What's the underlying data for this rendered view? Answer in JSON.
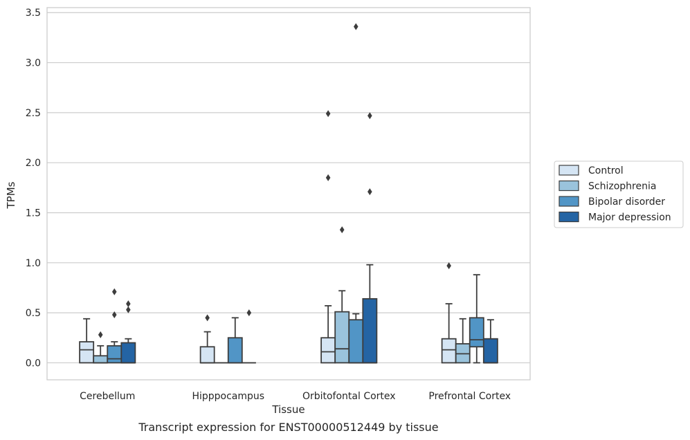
{
  "chart_data": {
    "type": "box",
    "xlabel": "Tissue",
    "ylabel": "TPMs",
    "caption": "Transcript expression for ENST00000512449 by tissue",
    "ylim": [
      -0.17,
      3.55
    ],
    "yticks": [
      "0.0",
      "0.5",
      "1.0",
      "1.5",
      "2.0",
      "2.5",
      "3.0",
      "3.5"
    ],
    "grid": true,
    "legend_position": "right",
    "categories": [
      "Cerebellum",
      "Hipppocampus",
      "Orbitofontal Cortex",
      "Prefrontal Cortex"
    ],
    "series": [
      {
        "name": "Control",
        "color": "#d5e5f4",
        "boxes": [
          {
            "q1": 0.0,
            "median": 0.13,
            "q3": 0.21,
            "whisker_low": 0.0,
            "whisker_high": 0.44,
            "outliers": []
          },
          {
            "q1": 0.0,
            "median": 0.0,
            "q3": 0.16,
            "whisker_low": 0.0,
            "whisker_high": 0.31,
            "outliers": [
              0.45
            ]
          },
          {
            "q1": 0.0,
            "median": 0.11,
            "q3": 0.25,
            "whisker_low": 0.0,
            "whisker_high": 0.57,
            "outliers": [
              1.85,
              2.49
            ]
          },
          {
            "q1": 0.0,
            "median": 0.13,
            "q3": 0.24,
            "whisker_low": 0.0,
            "whisker_high": 0.59,
            "outliers": [
              0.97
            ]
          }
        ]
      },
      {
        "name": "Schizophrenia",
        "color": "#9ac3dc",
        "boxes": [
          {
            "q1": 0.0,
            "median": 0.0,
            "q3": 0.07,
            "whisker_low": 0.0,
            "whisker_high": 0.17,
            "outliers": [
              0.28
            ]
          },
          {
            "q1": 0.0,
            "median": 0.0,
            "q3": 0.0,
            "whisker_low": 0.0,
            "whisker_high": 0.0,
            "outliers": []
          },
          {
            "q1": 0.0,
            "median": 0.14,
            "q3": 0.51,
            "whisker_low": 0.0,
            "whisker_high": 0.72,
            "outliers": [
              1.33
            ]
          },
          {
            "q1": 0.0,
            "median": 0.09,
            "q3": 0.19,
            "whisker_low": 0.0,
            "whisker_high": 0.44,
            "outliers": []
          }
        ]
      },
      {
        "name": "Bipolar disorder",
        "color": "#5195c6",
        "boxes": [
          {
            "q1": 0.0,
            "median": 0.04,
            "q3": 0.17,
            "whisker_low": 0.0,
            "whisker_high": 0.21,
            "outliers": [
              0.48,
              0.71
            ]
          },
          {
            "q1": 0.0,
            "median": 0.0,
            "q3": 0.25,
            "whisker_low": 0.0,
            "whisker_high": 0.45,
            "outliers": []
          },
          {
            "q1": 0.0,
            "median": 0.0,
            "q3": 0.43,
            "whisker_low": 0.0,
            "whisker_high": 0.49,
            "outliers": [
              3.36
            ]
          },
          {
            "q1": 0.16,
            "median": 0.23,
            "q3": 0.45,
            "whisker_low": 0.0,
            "whisker_high": 0.88,
            "outliers": []
          }
        ]
      },
      {
        "name": "Major depression",
        "color": "#2464a4",
        "boxes": [
          {
            "q1": 0.0,
            "median": 0.0,
            "q3": 0.2,
            "whisker_low": 0.0,
            "whisker_high": 0.24,
            "outliers": [
              0.53,
              0.59
            ]
          },
          {
            "q1": 0.0,
            "median": 0.0,
            "q3": 0.0,
            "whisker_low": 0.0,
            "whisker_high": 0.0,
            "outliers": [
              0.5
            ]
          },
          {
            "q1": 0.0,
            "median": 0.0,
            "q3": 0.64,
            "whisker_low": 0.0,
            "whisker_high": 0.98,
            "outliers": [
              1.71,
              2.47
            ]
          },
          {
            "q1": 0.0,
            "median": 0.0,
            "q3": 0.24,
            "whisker_low": 0.0,
            "whisker_high": 0.43,
            "outliers": []
          }
        ]
      }
    ]
  }
}
